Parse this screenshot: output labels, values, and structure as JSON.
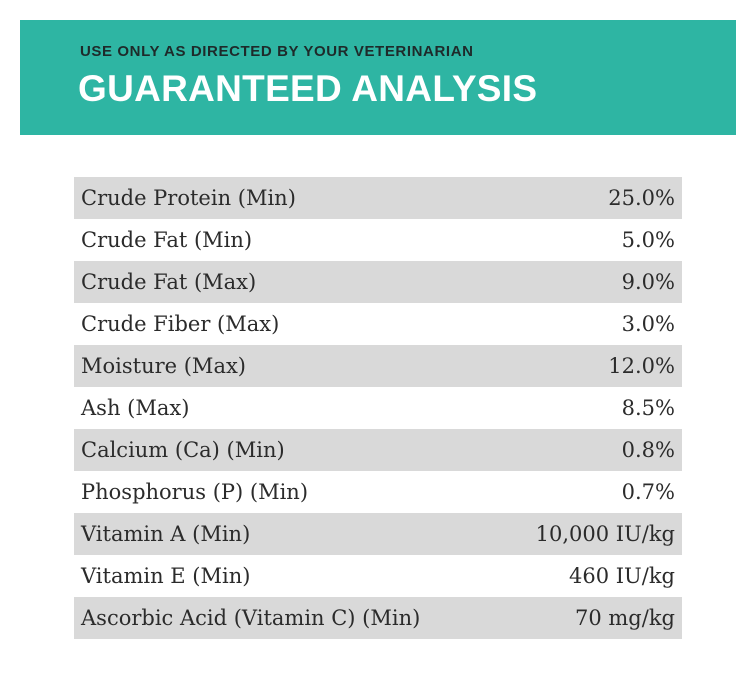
{
  "colors": {
    "banner_background": "#2eb5a3",
    "row_shade": "#d9d9d9",
    "row_plain": "#ffffff"
  },
  "header": {
    "subtitle": "USE ONLY AS DIRECTED BY YOUR VETERINARIAN",
    "title": "GUARANTEED ANALYSIS"
  },
  "analysis": {
    "rows": [
      {
        "label": "Crude Protein (Min)",
        "value": "25.0%"
      },
      {
        "label": "Crude Fat (Min)",
        "value": "5.0%"
      },
      {
        "label": "Crude Fat (Max)",
        "value": "9.0%"
      },
      {
        "label": "Crude Fiber (Max)",
        "value": "3.0%"
      },
      {
        "label": "Moisture (Max)",
        "value": "12.0%"
      },
      {
        "label": "Ash (Max)",
        "value": "8.5%"
      },
      {
        "label": "Calcium (Ca) (Min)",
        "value": "0.8%"
      },
      {
        "label": "Phosphorus (P) (Min)",
        "value": "0.7%"
      },
      {
        "label": "Vitamin A (Min)",
        "value": "10,000 IU/kg"
      },
      {
        "label": "Vitamin E (Min)",
        "value": "460 IU/kg"
      },
      {
        "label": "Ascorbic Acid (Vitamin C) (Min)",
        "value": "70 mg/kg"
      }
    ]
  }
}
